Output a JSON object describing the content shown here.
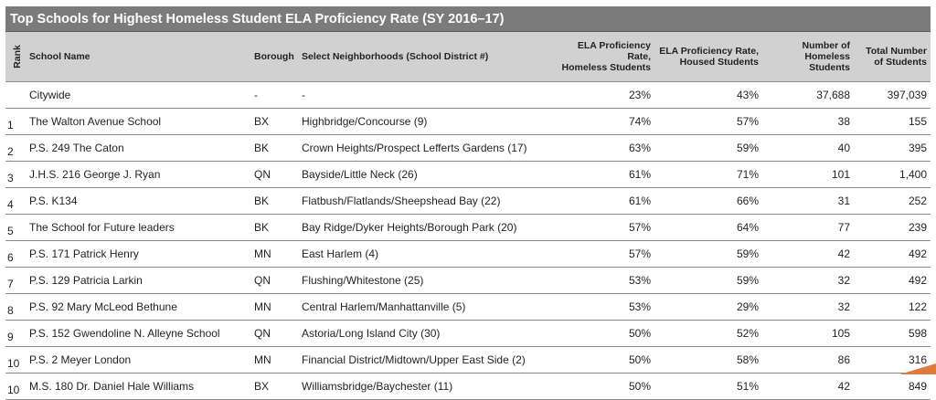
{
  "title": "Top Schools for Highest Homeless Student ELA Proficiency Rate  (SY 2016–17)",
  "columns": {
    "rank": "Rank",
    "school_name": "School Name",
    "borough": "Borough",
    "neighborhoods": "Select Neighborhoods (School District #)",
    "ela_homeless": "ELA Proficiency Rate, Homeless Students",
    "ela_housed": "ELA Proficiency Rate, Housed Students",
    "num_homeless": "Number of Homeless Students",
    "total_students": "Total Number of Students"
  },
  "rows": [
    {
      "rank": "",
      "school": "Citywide",
      "borough": "-",
      "neighborhood": "-",
      "ela_homeless": "23%",
      "ela_housed": "43%",
      "num_homeless": "37,688",
      "total": "397,039"
    },
    {
      "rank": "1",
      "school": "The Walton Avenue School",
      "borough": "BX",
      "neighborhood": "Highbridge/Concourse (9)",
      "ela_homeless": "74%",
      "ela_housed": "57%",
      "num_homeless": "38",
      "total": "155"
    },
    {
      "rank": "2",
      "school": "P.S. 249 The Caton",
      "borough": "BK",
      "neighborhood": "Crown Heights/Prospect Lefferts Gardens (17)",
      "ela_homeless": "63%",
      "ela_housed": "59%",
      "num_homeless": "40",
      "total": "395"
    },
    {
      "rank": "3",
      "school": "J.H.S. 216 George J. Ryan",
      "borough": "QN",
      "neighborhood": "Bayside/Little Neck (26)",
      "ela_homeless": "61%",
      "ela_housed": "71%",
      "num_homeless": "101",
      "total": "1,400"
    },
    {
      "rank": "4",
      "school": "P.S. K134",
      "borough": "BK",
      "neighborhood": "Flatbush/Flatlands/Sheepshead Bay (22)",
      "ela_homeless": "61%",
      "ela_housed": "66%",
      "num_homeless": "31",
      "total": "252"
    },
    {
      "rank": "5",
      "school": "The School for Future leaders",
      "borough": "BK",
      "neighborhood": "Bay Ridge/Dyker Heights/Borough Park (20)",
      "ela_homeless": "57%",
      "ela_housed": "64%",
      "num_homeless": "77",
      "total": "239"
    },
    {
      "rank": "6",
      "school": "P.S. 171 Patrick Henry",
      "borough": "MN",
      "neighborhood": "East Harlem (4)",
      "ela_homeless": "57%",
      "ela_housed": "59%",
      "num_homeless": "42",
      "total": "492"
    },
    {
      "rank": "7",
      "school": "P.S. 129 Patricia Larkin",
      "borough": "QN",
      "neighborhood": "Flushing/Whitestone (25)",
      "ela_homeless": "53%",
      "ela_housed": "59%",
      "num_homeless": "32",
      "total": "492"
    },
    {
      "rank": "8",
      "school": "P.S. 92 Mary McLeod Bethune",
      "borough": "MN",
      "neighborhood": "Central Harlem/Manhattanville (5)",
      "ela_homeless": "53%",
      "ela_housed": "29%",
      "num_homeless": "32",
      "total": "122"
    },
    {
      "rank": "9",
      "school": "P.S. 152 Gwendoline N. Alleyne School",
      "borough": "QN",
      "neighborhood": "Astoria/Long Island City (30)",
      "ela_homeless": "50%",
      "ela_housed": "52%",
      "num_homeless": "105",
      "total": "598"
    },
    {
      "rank": "10",
      "school": "P.S. 2 Meyer London",
      "borough": "MN",
      "neighborhood": "Financial District/Midtown/Upper East Side (2)",
      "ela_homeless": "50%",
      "ela_housed": "58%",
      "num_homeless": "86",
      "total": "316"
    },
    {
      "rank": "10",
      "school": "M.S. 180 Dr. Daniel Hale Williams",
      "borough": "BX",
      "neighborhood": "Williamsbridge/Baychester (11)",
      "ela_homeless": "50%",
      "ela_housed": "51%",
      "num_homeless": "42",
      "total": "849"
    }
  ],
  "colors": {
    "title_bar": "#7b7b7b",
    "header_bg": "#d1d1d1",
    "accent": "#e07a3a"
  }
}
